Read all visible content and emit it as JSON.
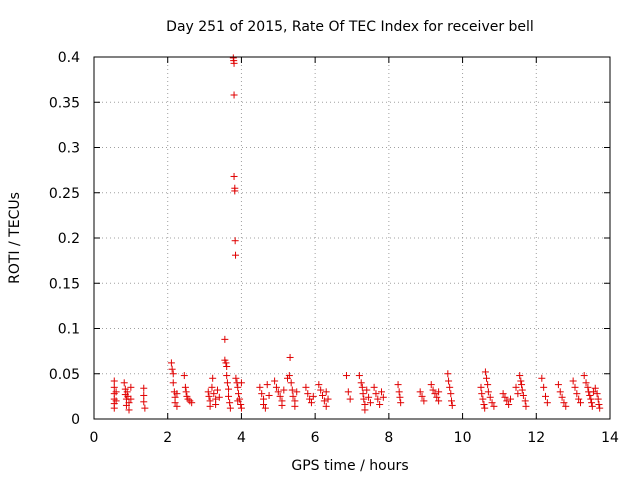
{
  "chart_data": {
    "type": "scatter",
    "title": "Day 251 of 2015, Rate Of TEC Index for receiver bell",
    "xlabel": "GPS time / hours",
    "ylabel": "ROTI / TECUs",
    "xlim": [
      0,
      14
    ],
    "ylim": [
      0,
      0.4
    ],
    "xticks": [
      0,
      2,
      4,
      6,
      8,
      10,
      12,
      14
    ],
    "xtick_labels": [
      "0",
      "2",
      "4",
      "6",
      "8",
      "10",
      "12",
      "14"
    ],
    "yticks": [
      0,
      0.05,
      0.1,
      0.15,
      0.2,
      0.25,
      0.3,
      0.35,
      0.4
    ],
    "ytick_labels": [
      "0",
      "0.05",
      "0.1",
      "0.15",
      "0.2",
      "0.25",
      "0.3",
      "0.35",
      "0.4"
    ],
    "grid": true,
    "marker": "+",
    "color": "#e00000",
    "series": [
      {
        "name": "ROTI",
        "points": [
          [
            0.55,
            0.042
          ],
          [
            0.55,
            0.035
          ],
          [
            0.55,
            0.028
          ],
          [
            0.55,
            0.022
          ],
          [
            0.55,
            0.017
          ],
          [
            0.55,
            0.012
          ],
          [
            0.6,
            0.03
          ],
          [
            0.6,
            0.02
          ],
          [
            0.82,
            0.04
          ],
          [
            0.85,
            0.033
          ],
          [
            0.85,
            0.027
          ],
          [
            0.88,
            0.022
          ],
          [
            0.88,
            0.015
          ],
          [
            0.9,
            0.03
          ],
          [
            0.92,
            0.025
          ],
          [
            0.95,
            0.018
          ],
          [
            0.95,
            0.01
          ],
          [
            1.0,
            0.035
          ],
          [
            1.0,
            0.022
          ],
          [
            1.35,
            0.034
          ],
          [
            1.35,
            0.026
          ],
          [
            1.35,
            0.019
          ],
          [
            1.38,
            0.012
          ],
          [
            2.1,
            0.062
          ],
          [
            2.12,
            0.055
          ],
          [
            2.15,
            0.05
          ],
          [
            2.15,
            0.04
          ],
          [
            2.18,
            0.03
          ],
          [
            2.2,
            0.024
          ],
          [
            2.2,
            0.018
          ],
          [
            2.25,
            0.014
          ],
          [
            2.25,
            0.028
          ],
          [
            2.45,
            0.048
          ],
          [
            2.48,
            0.035
          ],
          [
            2.5,
            0.03
          ],
          [
            2.52,
            0.025
          ],
          [
            2.55,
            0.022
          ],
          [
            2.6,
            0.02
          ],
          [
            2.65,
            0.018
          ],
          [
            3.1,
            0.03
          ],
          [
            3.12,
            0.025
          ],
          [
            3.15,
            0.02
          ],
          [
            3.15,
            0.014
          ],
          [
            3.2,
            0.035
          ],
          [
            3.22,
            0.045
          ],
          [
            3.25,
            0.028
          ],
          [
            3.3,
            0.022
          ],
          [
            3.3,
            0.016
          ],
          [
            3.35,
            0.032
          ],
          [
            3.4,
            0.024
          ],
          [
            3.55,
            0.088
          ],
          [
            3.55,
            0.065
          ],
          [
            3.58,
            0.062
          ],
          [
            3.6,
            0.058
          ],
          [
            3.6,
            0.048
          ],
          [
            3.62,
            0.04
          ],
          [
            3.65,
            0.033
          ],
          [
            3.65,
            0.025
          ],
          [
            3.68,
            0.018
          ],
          [
            3.7,
            0.012
          ],
          [
            3.78,
            0.399
          ],
          [
            3.79,
            0.396
          ],
          [
            3.8,
            0.393
          ],
          [
            3.8,
            0.358
          ],
          [
            3.8,
            0.268
          ],
          [
            3.82,
            0.255
          ],
          [
            3.82,
            0.252
          ],
          [
            3.83,
            0.197
          ],
          [
            3.84,
            0.181
          ],
          [
            3.85,
            0.045
          ],
          [
            3.88,
            0.04
          ],
          [
            3.9,
            0.035
          ],
          [
            3.92,
            0.028
          ],
          [
            3.95,
            0.022
          ],
          [
            3.98,
            0.016
          ],
          [
            4.0,
            0.012
          ],
          [
            4.0,
            0.04
          ],
          [
            3.9,
            0.02
          ],
          [
            4.5,
            0.035
          ],
          [
            4.55,
            0.028
          ],
          [
            4.6,
            0.022
          ],
          [
            4.6,
            0.016
          ],
          [
            4.65,
            0.012
          ],
          [
            4.7,
            0.038
          ],
          [
            4.75,
            0.026
          ],
          [
            4.9,
            0.042
          ],
          [
            4.95,
            0.035
          ],
          [
            5.0,
            0.03
          ],
          [
            5.05,
            0.025
          ],
          [
            5.1,
            0.02
          ],
          [
            5.1,
            0.015
          ],
          [
            5.15,
            0.032
          ],
          [
            5.25,
            0.045
          ],
          [
            5.3,
            0.048
          ],
          [
            5.32,
            0.068
          ],
          [
            5.35,
            0.04
          ],
          [
            5.38,
            0.032
          ],
          [
            5.4,
            0.025
          ],
          [
            5.45,
            0.02
          ],
          [
            5.45,
            0.014
          ],
          [
            5.5,
            0.03
          ],
          [
            5.75,
            0.035
          ],
          [
            5.8,
            0.028
          ],
          [
            5.85,
            0.022
          ],
          [
            5.9,
            0.018
          ],
          [
            5.95,
            0.025
          ],
          [
            6.1,
            0.038
          ],
          [
            6.15,
            0.032
          ],
          [
            6.2,
            0.026
          ],
          [
            6.25,
            0.02
          ],
          [
            6.3,
            0.014
          ],
          [
            6.3,
            0.03
          ],
          [
            6.35,
            0.022
          ],
          [
            6.85,
            0.048
          ],
          [
            6.9,
            0.03
          ],
          [
            6.95,
            0.022
          ],
          [
            7.2,
            0.048
          ],
          [
            7.25,
            0.04
          ],
          [
            7.28,
            0.035
          ],
          [
            7.3,
            0.028
          ],
          [
            7.32,
            0.022
          ],
          [
            7.35,
            0.016
          ],
          [
            7.35,
            0.01
          ],
          [
            7.4,
            0.032
          ],
          [
            7.45,
            0.024
          ],
          [
            7.5,
            0.018
          ],
          [
            7.6,
            0.035
          ],
          [
            7.65,
            0.028
          ],
          [
            7.7,
            0.022
          ],
          [
            7.75,
            0.016
          ],
          [
            7.8,
            0.03
          ],
          [
            7.85,
            0.024
          ],
          [
            8.25,
            0.038
          ],
          [
            8.28,
            0.03
          ],
          [
            8.3,
            0.024
          ],
          [
            8.32,
            0.018
          ],
          [
            8.85,
            0.03
          ],
          [
            8.9,
            0.025
          ],
          [
            8.95,
            0.02
          ],
          [
            9.15,
            0.038
          ],
          [
            9.2,
            0.032
          ],
          [
            9.25,
            0.028
          ],
          [
            9.3,
            0.024
          ],
          [
            9.35,
            0.02
          ],
          [
            9.35,
            0.03
          ],
          [
            9.6,
            0.05
          ],
          [
            9.62,
            0.042
          ],
          [
            9.65,
            0.035
          ],
          [
            9.68,
            0.028
          ],
          [
            9.7,
            0.02
          ],
          [
            9.72,
            0.015
          ],
          [
            10.5,
            0.035
          ],
          [
            10.52,
            0.028
          ],
          [
            10.55,
            0.022
          ],
          [
            10.58,
            0.016
          ],
          [
            10.6,
            0.012
          ],
          [
            10.62,
            0.052
          ],
          [
            10.65,
            0.045
          ],
          [
            10.68,
            0.038
          ],
          [
            10.7,
            0.03
          ],
          [
            10.75,
            0.024
          ],
          [
            10.8,
            0.018
          ],
          [
            10.85,
            0.014
          ],
          [
            11.1,
            0.028
          ],
          [
            11.15,
            0.024
          ],
          [
            11.2,
            0.02
          ],
          [
            11.25,
            0.016
          ],
          [
            11.3,
            0.022
          ],
          [
            11.45,
            0.035
          ],
          [
            11.5,
            0.028
          ],
          [
            11.55,
            0.048
          ],
          [
            11.58,
            0.042
          ],
          [
            11.6,
            0.038
          ],
          [
            11.62,
            0.032
          ],
          [
            11.65,
            0.026
          ],
          [
            11.7,
            0.02
          ],
          [
            11.72,
            0.014
          ],
          [
            12.15,
            0.045
          ],
          [
            12.2,
            0.035
          ],
          [
            12.25,
            0.025
          ],
          [
            12.3,
            0.018
          ],
          [
            12.6,
            0.038
          ],
          [
            12.65,
            0.03
          ],
          [
            12.7,
            0.024
          ],
          [
            12.75,
            0.018
          ],
          [
            12.8,
            0.014
          ],
          [
            13.0,
            0.042
          ],
          [
            13.05,
            0.035
          ],
          [
            13.1,
            0.028
          ],
          [
            13.15,
            0.022
          ],
          [
            13.2,
            0.018
          ],
          [
            13.3,
            0.048
          ],
          [
            13.35,
            0.04
          ],
          [
            13.4,
            0.035
          ],
          [
            13.42,
            0.03
          ],
          [
            13.45,
            0.026
          ],
          [
            13.48,
            0.022
          ],
          [
            13.5,
            0.018
          ],
          [
            13.52,
            0.014
          ],
          [
            13.55,
            0.03
          ],
          [
            13.6,
            0.034
          ],
          [
            13.65,
            0.028
          ],
          [
            13.68,
            0.022
          ],
          [
            13.7,
            0.016
          ],
          [
            13.72,
            0.012
          ]
        ]
      }
    ]
  }
}
